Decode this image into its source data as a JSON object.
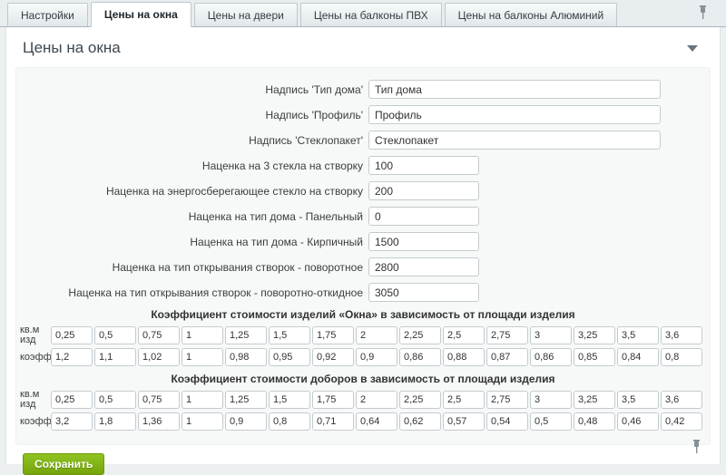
{
  "tab_bar": {
    "tabs": [
      {
        "label": "Настройки",
        "active": false
      },
      {
        "label": "Цены на окна",
        "active": true
      },
      {
        "label": "Цены на двери",
        "active": false
      },
      {
        "label": "Цены на балконы ПВХ",
        "active": false
      },
      {
        "label": "Цены на балконы Алюминий",
        "active": false
      }
    ]
  },
  "panel": {
    "title": "Цены на окна"
  },
  "form": {
    "fields": [
      {
        "label": "Надпись 'Тип дома'",
        "value": "Тип дома",
        "wide": true
      },
      {
        "label": "Надпись 'Профиль'",
        "value": "Профиль",
        "wide": true
      },
      {
        "label": "Надпись 'Стеклопакет'",
        "value": "Стеклопакет",
        "wide": true
      },
      {
        "label": "Наценка на 3 стекла на створку",
        "value": "100",
        "wide": false
      },
      {
        "label": "Наценка на энергосберегающее стекло на створку",
        "value": "200",
        "wide": false
      },
      {
        "label": "Наценка на тип дома - Панельный",
        "value": "0",
        "wide": false
      },
      {
        "label": "Наценка на тип дома - Кирпичный",
        "value": "1500",
        "wide": false
      },
      {
        "label": "Наценка на тип открывания створок - поворотное",
        "value": "2800",
        "wide": false
      },
      {
        "label": "Наценка на тип открывания створок - поворотно-откидное",
        "value": "3050",
        "wide": false
      }
    ]
  },
  "coefficient_tables": [
    {
      "title": "Коэффициент стоимости изделий «Окна» в зависимость от площади изделия",
      "row_labels": {
        "areas": "кв.м изд",
        "coeffs": "коэфф"
      },
      "areas": [
        "0,25",
        "0,5",
        "0,75",
        "1",
        "1,25",
        "1,5",
        "1,75",
        "2",
        "2,25",
        "2,5",
        "2,75",
        "3",
        "3,25",
        "3,5",
        "3,6"
      ],
      "coeffs": [
        "1,2",
        "1,1",
        "1,02",
        "1",
        "0,98",
        "0,95",
        "0,92",
        "0,9",
        "0,86",
        "0,88",
        "0,87",
        "0,86",
        "0,85",
        "0,84",
        "0,8"
      ]
    },
    {
      "title": "Коэффициент стоимости доборов в зависимость от площади изделия",
      "row_labels": {
        "areas": "кв.м изд",
        "coeffs": "коэфф"
      },
      "areas": [
        "0,25",
        "0,5",
        "0,75",
        "1",
        "1,25",
        "1,5",
        "1,75",
        "2",
        "2,25",
        "2,5",
        "2,75",
        "3",
        "3,25",
        "3,5",
        "3,6"
      ],
      "coeffs": [
        "3,2",
        "1,8",
        "1,36",
        "1",
        "0,9",
        "0,8",
        "0,71",
        "0,64",
        "0,62",
        "0,57",
        "0,54",
        "0,5",
        "0,48",
        "0,46",
        "0,42"
      ]
    }
  ],
  "footer": {
    "save_label": "Сохранить"
  },
  "icons": {
    "pin": "pushpin-icon",
    "collapse": "chevron-down-icon"
  },
  "colors": {
    "accent_green": "#79ab0e",
    "tab_strip_bg": "#e8edef",
    "panel_bg": "#ffffff",
    "form_box_bg": "#f7f9f9",
    "input_border": "#c3cbcf"
  }
}
